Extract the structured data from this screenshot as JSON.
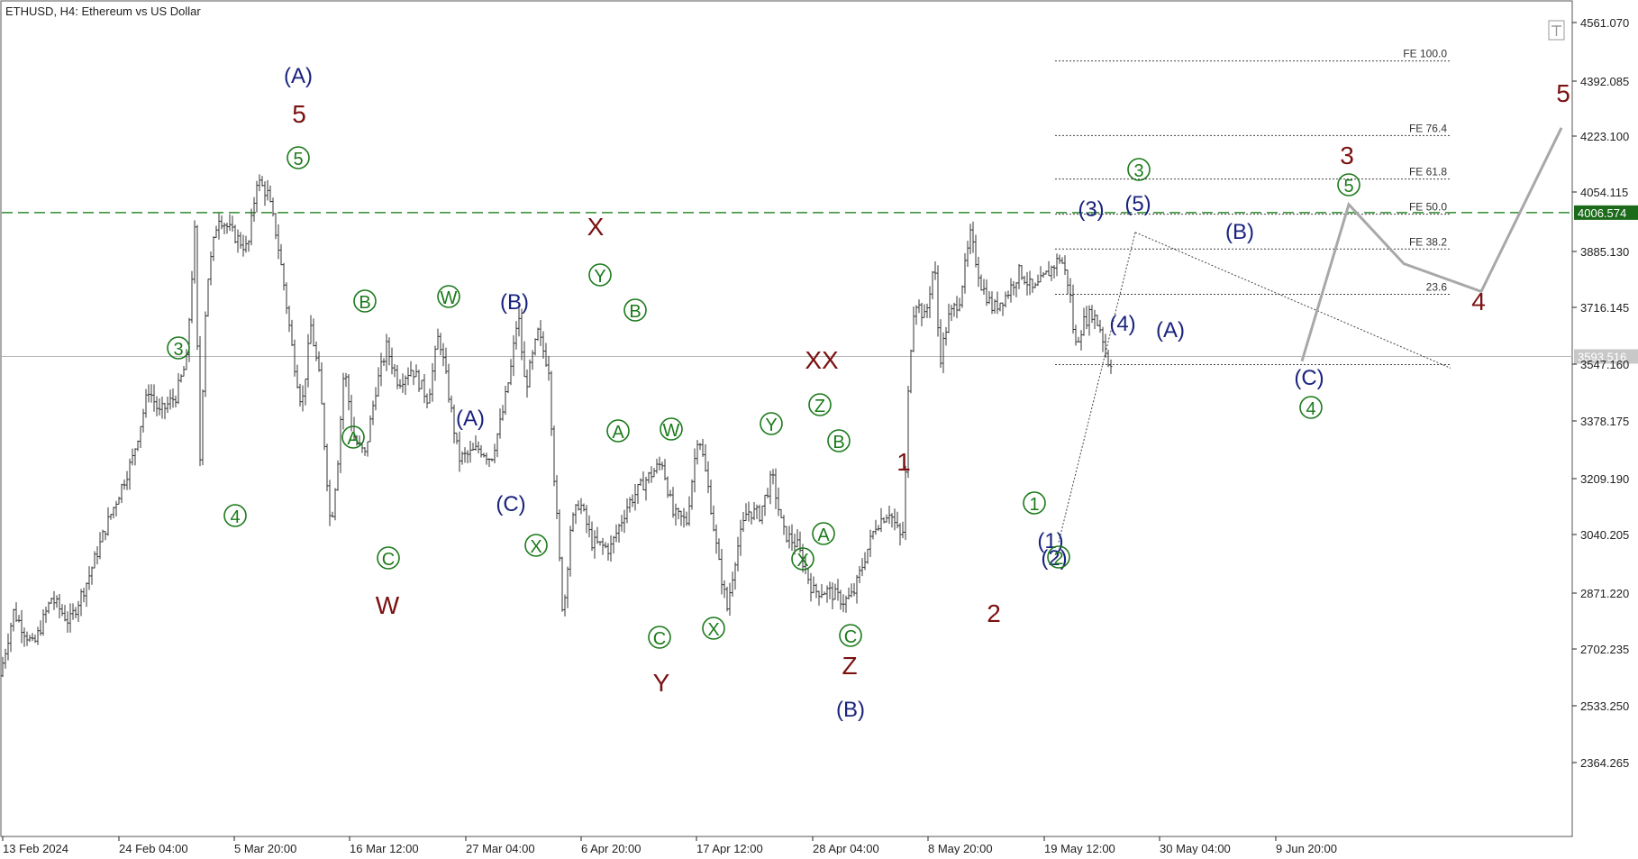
{
  "chart_data": {
    "type": "candlestick",
    "symbol": "ETHUSD",
    "timeframe": "H4",
    "title": "ETHUSD, H4:  Ethereum vs US Dollar",
    "price_axis_ticks": [
      "4561.070",
      "4392.085",
      "4223.100",
      "4054.115",
      "3885.130",
      "3716.145",
      "3547.160",
      "3378.175",
      "3209.190",
      "3040.205",
      "2871.220",
      "2702.235",
      "2533.250",
      "2364.265"
    ],
    "time_axis_ticks": [
      "13 Feb 2024",
      "24 Feb 04:00",
      "5 Mar 20:00",
      "16 Mar 12:00",
      "27 Mar 04:00",
      "6 Apr 20:00",
      "17 Apr 12:00",
      "28 Apr 04:00",
      "8 May 20:00",
      "19 May 12:00",
      "30 May 04:00",
      "9 Jun 20:00"
    ],
    "y_range": [
      2215,
      4612
    ],
    "levels": {
      "resistance": {
        "value": "4006.574",
        "color": "#2e8b2e",
        "style": "dashed"
      },
      "current": {
        "value": "3593.516",
        "color": "#b8b8b8"
      }
    },
    "price_path": [
      [
        0,
        2640
      ],
      [
        18,
        2860
      ],
      [
        40,
        2760
      ],
      [
        60,
        2900
      ],
      [
        80,
        2830
      ],
      [
        100,
        2950
      ],
      [
        120,
        3100
      ],
      [
        135,
        3200
      ],
      [
        150,
        3300
      ],
      [
        168,
        3500
      ],
      [
        180,
        3430
      ],
      [
        198,
        3480
      ],
      [
        210,
        3580
      ],
      [
        220,
        3990
      ],
      [
        224,
        3230
      ],
      [
        232,
        3790
      ],
      [
        245,
        4000
      ],
      [
        260,
        3950
      ],
      [
        278,
        3900
      ],
      [
        288,
        4100
      ],
      [
        300,
        4060
      ],
      [
        310,
        3940
      ],
      [
        318,
        3800
      ],
      [
        328,
        3600
      ],
      [
        338,
        3450
      ],
      [
        348,
        3680
      ],
      [
        358,
        3520
      ],
      [
        370,
        3100
      ],
      [
        378,
        3300
      ],
      [
        385,
        3570
      ],
      [
        395,
        3360
      ],
      [
        408,
        3310
      ],
      [
        420,
        3500
      ],
      [
        432,
        3620
      ],
      [
        445,
        3520
      ],
      [
        460,
        3560
      ],
      [
        478,
        3470
      ],
      [
        490,
        3660
      ],
      [
        500,
        3500
      ],
      [
        512,
        3300
      ],
      [
        522,
        3310
      ],
      [
        535,
        3330
      ],
      [
        548,
        3300
      ],
      [
        560,
        3420
      ],
      [
        570,
        3560
      ],
      [
        578,
        3720
      ],
      [
        586,
        3500
      ],
      [
        600,
        3660
      ],
      [
        612,
        3560
      ],
      [
        618,
        3250
      ],
      [
        628,
        2840
      ],
      [
        636,
        3100
      ],
      [
        646,
        3180
      ],
      [
        660,
        3060
      ],
      [
        680,
        3040
      ],
      [
        700,
        3170
      ],
      [
        720,
        3240
      ],
      [
        738,
        3290
      ],
      [
        750,
        3140
      ],
      [
        765,
        3120
      ],
      [
        778,
        3380
      ],
      [
        790,
        3200
      ],
      [
        800,
        3010
      ],
      [
        810,
        2870
      ],
      [
        820,
        3030
      ],
      [
        832,
        3150
      ],
      [
        846,
        3140
      ],
      [
        860,
        3250
      ],
      [
        872,
        3090
      ],
      [
        888,
        3050
      ],
      [
        905,
        2920
      ],
      [
        922,
        2920
      ],
      [
        940,
        2890
      ],
      [
        950,
        2910
      ],
      [
        962,
        3010
      ],
      [
        975,
        3110
      ],
      [
        990,
        3150
      ],
      [
        1003,
        3070
      ],
      [
        1006,
        3100
      ],
      [
        1012,
        3560
      ],
      [
        1018,
        3760
      ],
      [
        1030,
        3700
      ],
      [
        1040,
        3870
      ],
      [
        1046,
        3580
      ],
      [
        1055,
        3700
      ],
      [
        1068,
        3760
      ],
      [
        1080,
        3940
      ],
      [
        1092,
        3800
      ],
      [
        1105,
        3730
      ],
      [
        1120,
        3770
      ],
      [
        1135,
        3840
      ],
      [
        1150,
        3780
      ],
      [
        1165,
        3830
      ],
      [
        1180,
        3880
      ],
      [
        1190,
        3790
      ],
      [
        1196,
        3620
      ],
      [
        1205,
        3690
      ],
      [
        1215,
        3720
      ],
      [
        1225,
        3670
      ],
      [
        1232,
        3580
      ]
    ],
    "projection": {
      "color": "#a8a8a8",
      "points": [
        [
          3580,
          "start"
        ],
        [
          4030,
          "3"
        ],
        [
          3860,
          ""
        ],
        [
          3780,
          "4"
        ],
        [
          4250,
          "5"
        ]
      ]
    },
    "trendline": {
      "from": 3525,
      "to": 3560,
      "pivot": 3950
    },
    "fibonacci": [
      {
        "label": "FE 100.0",
        "value": 4442
      },
      {
        "label": "FE 76.4",
        "value": 4228
      },
      {
        "label": "FE 61.8",
        "value": 4103
      },
      {
        "label": "FE 50.0",
        "value": 4002
      },
      {
        "label": "FE 38.2",
        "value": 3902
      },
      {
        "label": "23.6",
        "value": 3772
      },
      {
        "label": "",
        "value": 3570
      }
    ],
    "wave_labels": [
      {
        "text": "(A)",
        "color": "navy"
      },
      {
        "text": "5",
        "color": "maroon"
      },
      {
        "text": "5",
        "color": "green",
        "circled": true
      },
      {
        "text": "3",
        "color": "green",
        "circled": true
      },
      {
        "text": "4",
        "color": "green",
        "circled": true
      },
      {
        "text": "B",
        "color": "green",
        "circled": true
      },
      {
        "text": "A",
        "color": "green",
        "circled": true
      },
      {
        "text": "C",
        "color": "green",
        "circled": true
      },
      {
        "text": "W",
        "color": "maroon"
      },
      {
        "text": "W",
        "color": "green",
        "circled": true
      },
      {
        "text": "(A)",
        "color": "navy"
      },
      {
        "text": "(B)",
        "color": "navy"
      },
      {
        "text": "(C)",
        "color": "navy"
      },
      {
        "text": "X",
        "color": "green",
        "circled": true
      },
      {
        "text": "X",
        "color": "maroon"
      },
      {
        "text": "Y",
        "color": "green",
        "circled": true
      },
      {
        "text": "B",
        "color": "green",
        "circled": true
      },
      {
        "text": "A",
        "color": "green",
        "circled": true
      },
      {
        "text": "W",
        "color": "green",
        "circled": true
      },
      {
        "text": "C",
        "color": "green",
        "circled": true
      },
      {
        "text": "Y",
        "color": "maroon"
      },
      {
        "text": "X",
        "color": "green",
        "circled": true
      },
      {
        "text": "Y",
        "color": "green",
        "circled": true
      },
      {
        "text": "XX",
        "color": "maroon"
      },
      {
        "text": "Z",
        "color": "green",
        "circled": true
      },
      {
        "text": "B",
        "color": "green",
        "circled": true
      },
      {
        "text": "A",
        "color": "green",
        "circled": true
      },
      {
        "text": "X",
        "color": "green",
        "circled": true
      },
      {
        "text": "C",
        "color": "green",
        "circled": true
      },
      {
        "text": "Z",
        "color": "maroon"
      },
      {
        "text": "(B)",
        "color": "navy"
      },
      {
        "text": "1",
        "color": "maroon"
      },
      {
        "text": "2",
        "color": "maroon"
      },
      {
        "text": "1",
        "color": "green",
        "circled": true
      },
      {
        "text": "(1)",
        "color": "navy"
      },
      {
        "text": "(2)",
        "color": "navy"
      },
      {
        "text": "2",
        "color": "green",
        "circled": true
      },
      {
        "text": "(3)",
        "color": "navy"
      },
      {
        "text": "3",
        "color": "green",
        "circled": true
      },
      {
        "text": "(5)",
        "color": "navy"
      },
      {
        "text": "(4)",
        "color": "navy"
      },
      {
        "text": "(A)",
        "color": "navy"
      },
      {
        "text": "(B)",
        "color": "navy"
      },
      {
        "text": "(C)",
        "color": "navy"
      },
      {
        "text": "4",
        "color": "green",
        "circled": true
      },
      {
        "text": "3",
        "color": "maroon"
      },
      {
        "text": "5",
        "color": "green",
        "circled": true
      },
      {
        "text": "4",
        "color": "maroon"
      },
      {
        "text": "5",
        "color": "maroon"
      }
    ]
  },
  "colors": {
    "navy": "#1a237e",
    "maroon": "#7b1111",
    "green": "#1b7a1b",
    "candle": "#333333",
    "axis": "#222222"
  },
  "icons": {
    "scroll_toggle": "scroll-toggle-icon"
  }
}
